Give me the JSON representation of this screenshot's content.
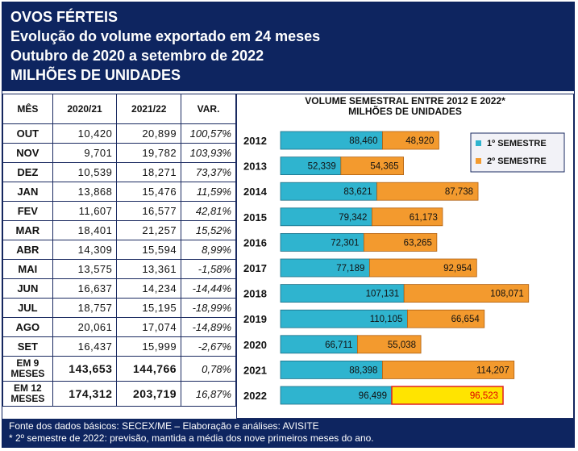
{
  "header": {
    "line1": "OVOS FÉRTEIS",
    "line2": "Evolução do volume exportado em 24 meses",
    "line3": "Outubro de 2020 a setembro de 2022",
    "line4": "MILHÕES DE UNIDADES"
  },
  "table": {
    "columns": [
      "MÊS",
      "2020/21",
      "2021/22",
      "VAR."
    ],
    "rows": [
      {
        "mes": "OUT",
        "a": "10,420",
        "b": "20,899",
        "var": "100,57%",
        "neg": false
      },
      {
        "mes": "NOV",
        "a": "9,701",
        "b": "19,782",
        "var": "103,93%",
        "neg": false
      },
      {
        "mes": "DEZ",
        "a": "10,539",
        "b": "18,271",
        "var": "73,37%",
        "neg": false
      },
      {
        "mes": "JAN",
        "a": "13,868",
        "b": "15,476",
        "var": "11,59%",
        "neg": false
      },
      {
        "mes": "FEV",
        "a": "11,607",
        "b": "16,577",
        "var": "42,81%",
        "neg": false
      },
      {
        "mes": "MAR",
        "a": "18,401",
        "b": "21,257",
        "var": "15,52%",
        "neg": false
      },
      {
        "mes": "ABR",
        "a": "14,309",
        "b": "15,594",
        "var": "8,99%",
        "neg": false
      },
      {
        "mes": "MAI",
        "a": "13,575",
        "b": "13,361",
        "var": "-1,58%",
        "neg": true
      },
      {
        "mes": "JUN",
        "a": "16,637",
        "b": "14,234",
        "var": "-14,44%",
        "neg": true
      },
      {
        "mes": "JUL",
        "a": "18,757",
        "b": "15,195",
        "var": "-18,99%",
        "neg": true
      },
      {
        "mes": "AGO",
        "a": "20,061",
        "b": "17,074",
        "var": "-14,89%",
        "neg": true
      },
      {
        "mes": "SET",
        "a": "16,437",
        "b": "15,999",
        "var": "-2,67%",
        "neg": true
      }
    ],
    "totals": [
      {
        "mes1": "EM 9",
        "mes2": "MESES",
        "a": "143,653",
        "b": "144,766",
        "var": "0,78%"
      },
      {
        "mes1": "EM 12",
        "mes2": "MESES",
        "a": "174,312",
        "b": "203,719",
        "var": "16,87%"
      }
    ]
  },
  "chart_data": {
    "type": "bar",
    "orientation": "horizontal-stacked",
    "title": "VOLUME SEMESTRAL ENTRE 2012 E 2022*",
    "subtitle": "MILHÕES DE UNIDADES",
    "categories": [
      "2012",
      "2013",
      "2014",
      "2015",
      "2016",
      "2017",
      "2018",
      "2019",
      "2020",
      "2021",
      "2022"
    ],
    "series": [
      {
        "name": "1º SEMESTRE",
        "color": "#2fb4cf",
        "values": [
          88.46,
          52.339,
          83.621,
          79.342,
          72.301,
          77.189,
          107.131,
          110.105,
          66.711,
          88.398,
          96.499
        ],
        "labels": [
          "88,460",
          "52,339",
          "83,621",
          "79,342",
          "72,301",
          "77,189",
          "107,131",
          "110,105",
          "66,711",
          "88,398",
          "96,499"
        ]
      },
      {
        "name": "2º SEMESTRE",
        "color": "#f39a2e",
        "projected_color": "#ffe400",
        "values": [
          48.92,
          54.365,
          87.738,
          61.173,
          63.265,
          92.954,
          108.071,
          66.654,
          55.038,
          114.207,
          96.523
        ],
        "labels": [
          "48,920",
          "54,365",
          "87,738",
          "61,173",
          "63,265",
          "92,954",
          "108,071",
          "66,654",
          "55,038",
          "114,207",
          "96,523"
        ],
        "projected": [
          false,
          false,
          false,
          false,
          false,
          false,
          false,
          false,
          false,
          false,
          true
        ]
      }
    ],
    "legend_position": "top-right"
  },
  "footer": {
    "line1": "Fonte dos dados básicos: SECEX/ME – Elaboração e análises: AVISITE",
    "line2": "* 2º semestre de 2022: previsão, mantida a média dos nove primeiros meses do ano."
  }
}
